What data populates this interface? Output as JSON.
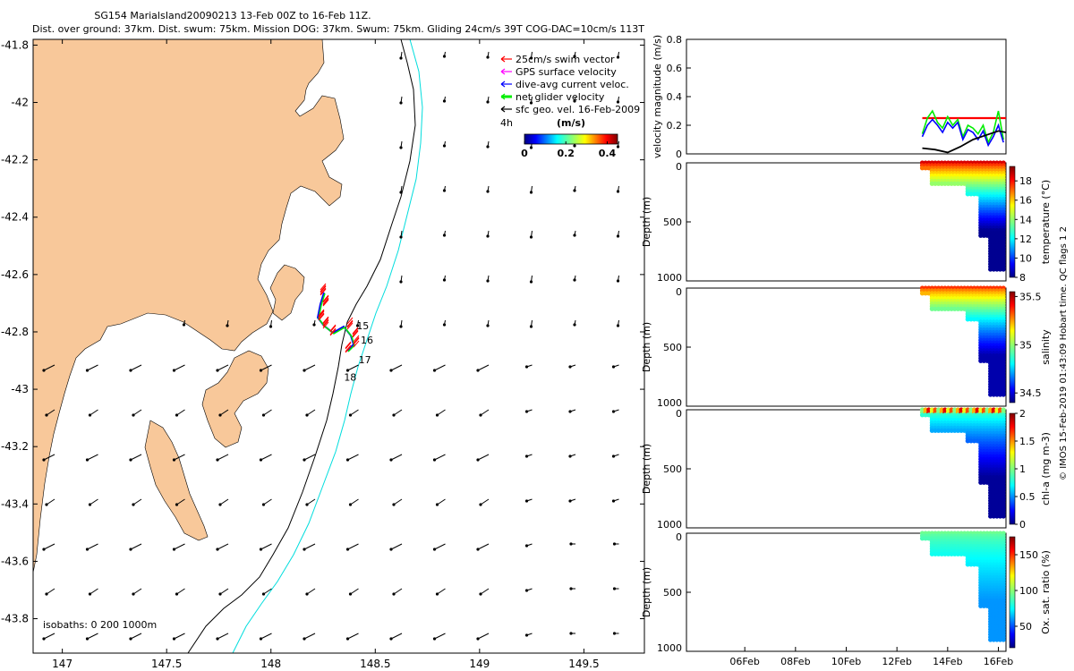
{
  "title_line1": "SG154 MarialsIand20090213 13-Feb 00Z to 16-Feb 11Z.",
  "title_line2": "Dist. over ground: 37km. Dist. swum: 75km. Mission DOG: 37km. Swum: 75km. Gliding 24cm/s 39T COG-DAC=10cm/s 113T",
  "vertical_note": "© IMOS 15-Feb-2019 01:43:09 Hobart time. QC flags 1 2",
  "colors": {
    "land": "#f8c89a",
    "red": "#ff0000",
    "magenta": "#ff00ff",
    "blue": "#0000ff",
    "green": "#00ee00",
    "cyan": "#00dddd",
    "black": "#000000"
  },
  "chart_data": [
    {
      "type": "scatter",
      "title": "map",
      "x_ticks": [
        "147",
        "147.5",
        "148",
        "148.5",
        "149",
        "149.5"
      ],
      "y_ticks": [
        "-41.8",
        "-42",
        "-42.2",
        "-42.4",
        "-42.6",
        "-42.8",
        "-43",
        "-43.2",
        "-43.4",
        "-43.6",
        "-43.8"
      ],
      "xlim": [
        146.86,
        149.79
      ],
      "ylim": [
        -43.92,
        -41.78
      ],
      "legend": [
        {
          "label": "25cm/s swim vector",
          "color": "#ff0000"
        },
        {
          "label": "GPS surface velocity",
          "color": "#ff00ff"
        },
        {
          "label": "dive-avg current veloc.",
          "color": "#0000ff"
        },
        {
          "label": "net glider velocity",
          "color": "#00ee00"
        },
        {
          "label": "sfc geo. vel. 16-Feb-2009",
          "color": "#000000"
        }
      ],
      "colorbar": {
        "label": "(m/s)",
        "side_label": "4h",
        "ticks": [
          "0",
          "0.2",
          "0.4"
        ],
        "range": [
          0,
          0.45
        ]
      },
      "day_labels": [
        {
          "text": "15",
          "lon": 148.41,
          "lat": -42.79
        },
        {
          "text": "16",
          "lon": 148.43,
          "lat": -42.84
        },
        {
          "text": "17",
          "lon": 148.42,
          "lat": -42.91
        },
        {
          "text": "18",
          "lon": 148.35,
          "lat": -42.97
        }
      ],
      "isobath_label": "isobaths: 0   200   1000m"
    },
    {
      "type": "line",
      "ylabel": "velocity magnitude (m/s)",
      "y_ticks": [
        "0",
        "0.2",
        "0.4",
        "0.6",
        "0.8"
      ],
      "ylim": [
        0,
        0.8
      ],
      "xlim_days": [
        3.7,
        16.3
      ],
      "series": [
        {
          "name": "swim",
          "color": "#ff0000",
          "x": [
            13,
            13.5,
            14,
            14.5,
            15,
            15.5,
            16,
            16.3
          ],
          "values": [
            0.25,
            0.25,
            0.25,
            0.25,
            0.25,
            0.25,
            0.25,
            0.25
          ]
        },
        {
          "name": "net",
          "color": "#00ee00",
          "x": [
            13,
            13.2,
            13.4,
            13.6,
            13.8,
            14,
            14.2,
            14.4,
            14.6,
            14.8,
            15,
            15.2,
            15.4,
            15.6,
            15.8,
            16,
            16.2
          ],
          "values": [
            0.14,
            0.25,
            0.3,
            0.22,
            0.18,
            0.26,
            0.2,
            0.24,
            0.12,
            0.2,
            0.18,
            0.14,
            0.2,
            0.08,
            0.15,
            0.3,
            0.1
          ]
        },
        {
          "name": "dac",
          "color": "#0000ff",
          "x": [
            13,
            13.2,
            13.4,
            13.6,
            13.8,
            14,
            14.2,
            14.4,
            14.6,
            14.8,
            15,
            15.2,
            15.4,
            15.6,
            15.8,
            16,
            16.2
          ],
          "values": [
            0.12,
            0.2,
            0.24,
            0.2,
            0.15,
            0.22,
            0.18,
            0.22,
            0.1,
            0.17,
            0.15,
            0.1,
            0.16,
            0.06,
            0.12,
            0.2,
            0.08
          ]
        },
        {
          "name": "sfc",
          "color": "#000000",
          "x": [
            13,
            13.5,
            14,
            14.5,
            15,
            15.5,
            16,
            16.3
          ],
          "values": [
            0.04,
            0.03,
            0.01,
            0.05,
            0.1,
            0.13,
            0.16,
            0.15
          ]
        }
      ]
    },
    {
      "type": "heatmap",
      "ylabel": "Depth (m)",
      "cbar_label": "temperature (°C)",
      "cbar_ticks": [
        "8",
        "10",
        "12",
        "14",
        "16",
        "18"
      ],
      "cbar_range": [
        8,
        19.5
      ],
      "y_ticks": [
        "0",
        "500",
        "1000"
      ],
      "ylim": [
        1000,
        0
      ],
      "profile": {
        "start_day": 13.0,
        "end_day": 16.2,
        "surface_value": 18.5,
        "deep_value": 8.2,
        "max_depth": 920
      }
    },
    {
      "type": "heatmap",
      "ylabel": "Depth (m)",
      "cbar_label": "salinity",
      "cbar_ticks": [
        "34.5",
        "35",
        "35.5"
      ],
      "cbar_range": [
        34.4,
        35.55
      ],
      "y_ticks": [
        "0",
        "500",
        "1000"
      ],
      "ylim": [
        1000,
        0
      ],
      "profile": {
        "start_day": 13.0,
        "end_day": 16.2,
        "surface_value": 35.35,
        "deep_value": 34.45,
        "max_depth": 920
      }
    },
    {
      "type": "heatmap",
      "ylabel": "Depth (m)",
      "cbar_label": "chl-a (mg m-3)",
      "cbar_ticks": [
        "0",
        "0.5",
        "1",
        "1.5",
        "2"
      ],
      "cbar_range": [
        0,
        2
      ],
      "y_ticks": [
        "0",
        "500",
        "1000"
      ],
      "ylim": [
        1000,
        0
      ],
      "profile": {
        "start_day": 13.0,
        "end_day": 16.2,
        "surface_value": 1.0,
        "deep_value": 0.05,
        "max_depth": 920
      }
    },
    {
      "type": "heatmap",
      "ylabel": "Depth (m)",
      "cbar_label": "Ox. sat. ratio (%)",
      "cbar_ticks": [
        "50",
        "100",
        "150"
      ],
      "cbar_range": [
        20,
        175
      ],
      "y_ticks": [
        "0",
        "500",
        "1000"
      ],
      "ylim": [
        1000,
        0
      ],
      "x_ticks": [
        "06Feb",
        "08Feb",
        "10Feb",
        "12Feb",
        "14Feb",
        "16Feb"
      ],
      "x_tick_days": [
        6,
        8,
        10,
        12,
        14,
        16
      ],
      "profile": {
        "start_day": 13.0,
        "end_day": 16.2,
        "surface_value": 95,
        "deep_value": 62,
        "max_depth": 920
      }
    }
  ]
}
